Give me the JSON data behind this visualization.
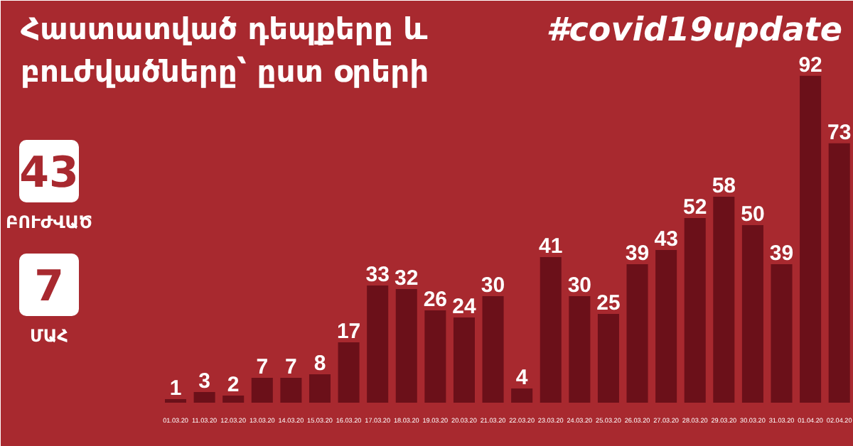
{
  "chart_data": [
    {
      "type": "bar",
      "title": "Հաստատված դեպքերը և\nբուժվածները՝ ըստ օրերի",
      "categories": [
        "01.03.20",
        "11.03.20",
        "12.03.20",
        "13.03.20",
        "14.03.20",
        "15.03.20",
        "16.03.20",
        "17.03.20",
        "18.03.20",
        "19.03.20",
        "20.03.20",
        "21.03.20",
        "22.03.20",
        "23.03.20",
        "24.03.20",
        "25.03.20",
        "26.03.20",
        "27.03.20",
        "28.03.20",
        "29.03.20",
        "30.03.20",
        "31.03.20",
        "01.04.20",
        "02.04.20"
      ],
      "values": [
        1,
        3,
        2,
        7,
        7,
        8,
        17,
        33,
        32,
        26,
        24,
        30,
        4,
        41,
        30,
        25,
        39,
        43,
        52,
        58,
        50,
        39,
        92,
        73
      ],
      "color": "#6b1019",
      "data_labels": true,
      "grid": false,
      "annotations": [
        "#covid19update"
      ]
    },
    {
      "type": "other",
      "annotations": [
        "43",
        "ԲՈՒԺՎԱԾ",
        "7",
        "ՄԱՀ"
      ]
    }
  ]
}
